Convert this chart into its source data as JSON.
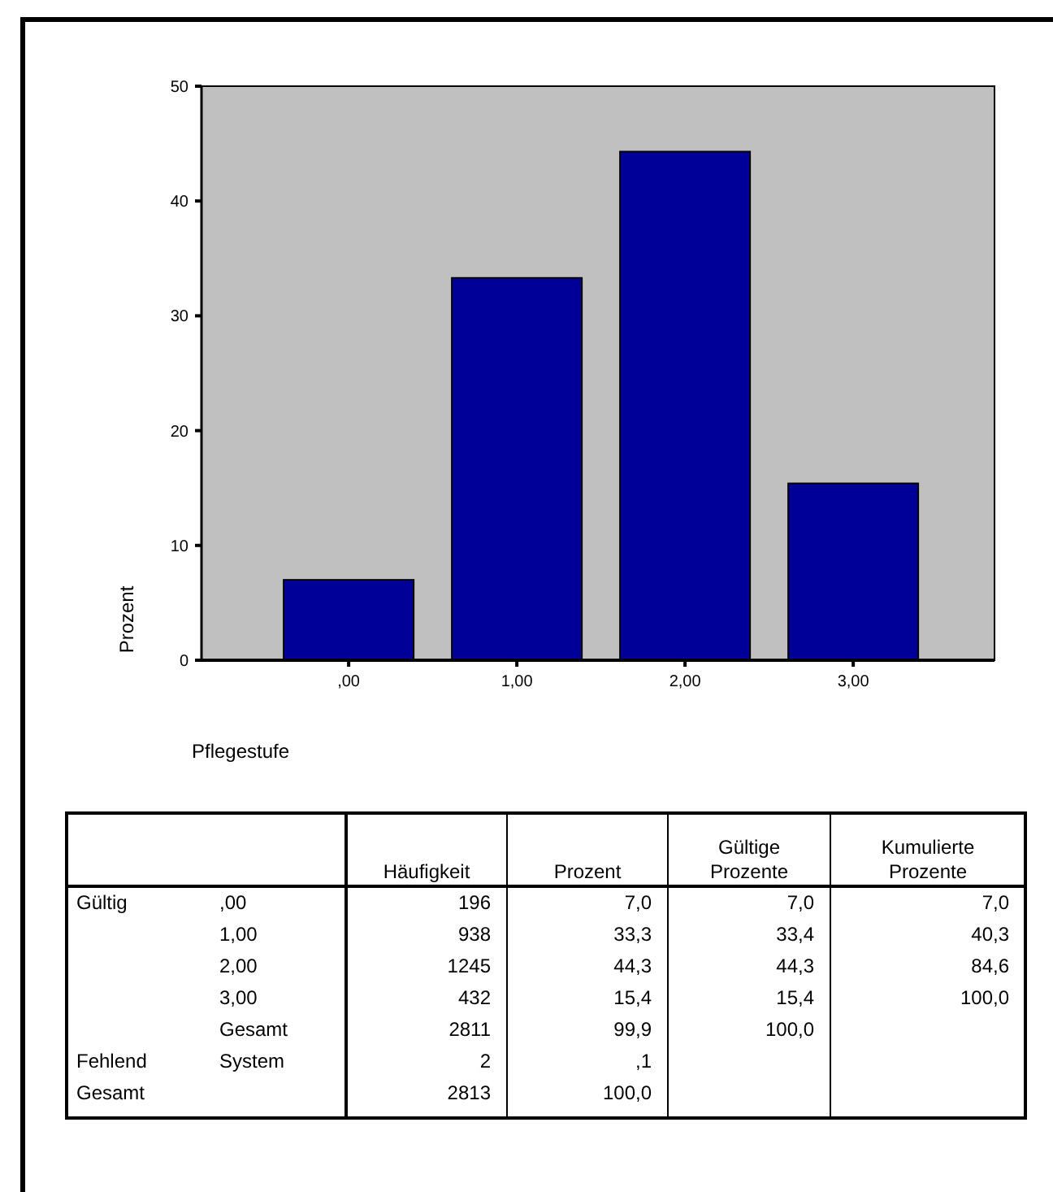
{
  "chart_data": {
    "type": "bar",
    "xlabel": "Pflegestufe",
    "ylabel": "Prozent",
    "categories": [
      ",00",
      "1,00",
      "2,00",
      "3,00"
    ],
    "values": [
      7.0,
      33.3,
      44.3,
      15.4
    ],
    "color": "#000099",
    "ylim": [
      0,
      50
    ],
    "yticks": [
      0,
      10,
      20,
      30,
      40,
      50
    ],
    "annotations": [
      "Häufigkeit",
      "Prozent",
      "Gültige Prozente",
      "Kumulierte Prozente",
      "Gültig",
      ",00",
      "196",
      "7,0",
      "7,0",
      "7,0",
      "1,00",
      "938",
      "33,3",
      "33,4",
      "40,3",
      "2,00",
      "1245",
      "44,3",
      "44,3",
      "84,6",
      "3,00",
      "432",
      "15,4",
      "15,4",
      "100,0",
      "Gesamt",
      "2811",
      "99,9",
      "100,0",
      "Fehlend",
      "System",
      "2",
      ",1",
      "Gesamt",
      "2813",
      "100,0"
    ]
  }
}
